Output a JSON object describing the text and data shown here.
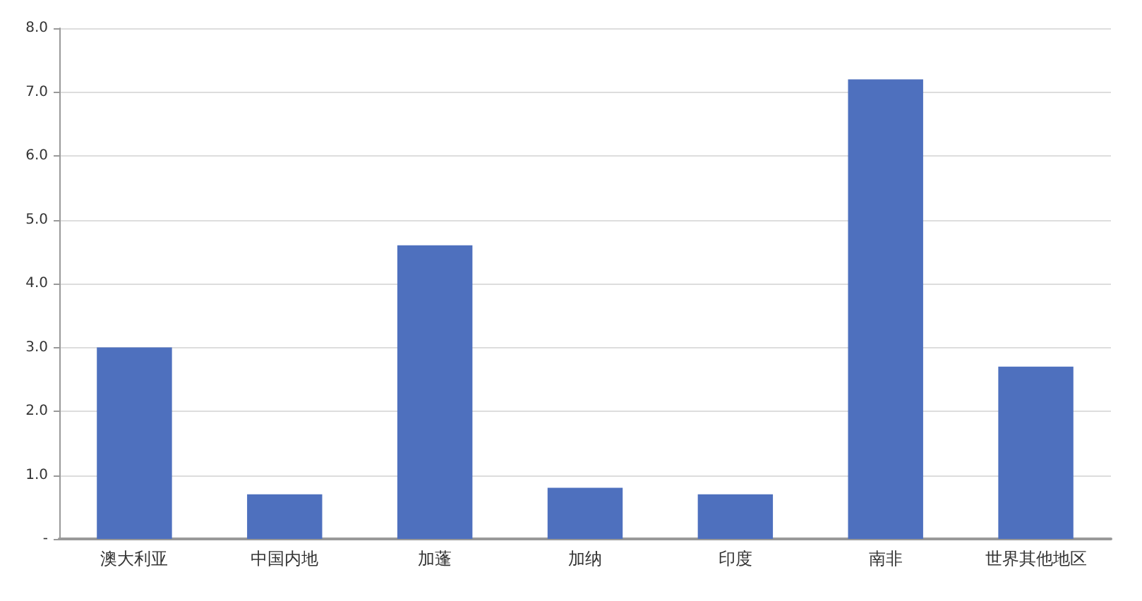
{
  "chart_data": {
    "type": "bar",
    "categories": [
      "澳大利亚",
      "中国内地",
      "加蓬",
      "加纳",
      "印度",
      "南非",
      "世界其他地区"
    ],
    "values": [
      3.0,
      0.7,
      4.6,
      0.8,
      0.7,
      7.2,
      2.7
    ],
    "color": "#4e70be",
    "ylim": [
      0,
      8
    ],
    "yticks": [
      {
        "value": 0,
        "label": "-"
      },
      {
        "value": 1,
        "label": "1.0"
      },
      {
        "value": 2,
        "label": "2.0"
      },
      {
        "value": 3,
        "label": "3.0"
      },
      {
        "value": 4,
        "label": "4.0"
      },
      {
        "value": 5,
        "label": "5.0"
      },
      {
        "value": 6,
        "label": "6.0"
      },
      {
        "value": 7,
        "label": "7.0"
      },
      {
        "value": 8,
        "label": "8.0"
      }
    ],
    "grid": "y"
  }
}
